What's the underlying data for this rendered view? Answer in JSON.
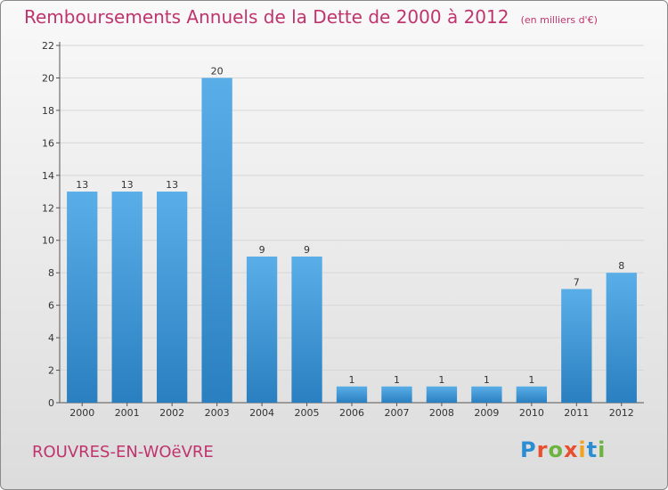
{
  "chart_data": {
    "type": "bar",
    "title": "Remboursements Annuels de la Dette de 2000 à 2012",
    "unit": "(en milliers d'€)",
    "categories": [
      "2000",
      "2001",
      "2002",
      "2003",
      "2004",
      "2005",
      "2006",
      "2007",
      "2008",
      "2009",
      "2010",
      "2011",
      "2012"
    ],
    "values": [
      13,
      13,
      13,
      20,
      9,
      9,
      1,
      1,
      1,
      1,
      1,
      7,
      8
    ],
    "ylim": [
      0,
      22
    ],
    "yticks": [
      0,
      2,
      4,
      6,
      8,
      10,
      12,
      14,
      16,
      18,
      20,
      22
    ],
    "grid": true,
    "bar_color_top": "#5aaee8",
    "bar_color_bottom": "#2a7fc0"
  },
  "footer": {
    "commune": "ROUVRES-EN-WOëVRE",
    "logo_letters": [
      "P",
      "r",
      "o",
      "x",
      "i",
      "t",
      "i"
    ],
    "logo_colors": [
      "#2b8ed3",
      "#e94e2e",
      "#6cb43f",
      "#e94e2e",
      "#f2a31b",
      "#2b8ed3",
      "#6cb43f"
    ]
  }
}
